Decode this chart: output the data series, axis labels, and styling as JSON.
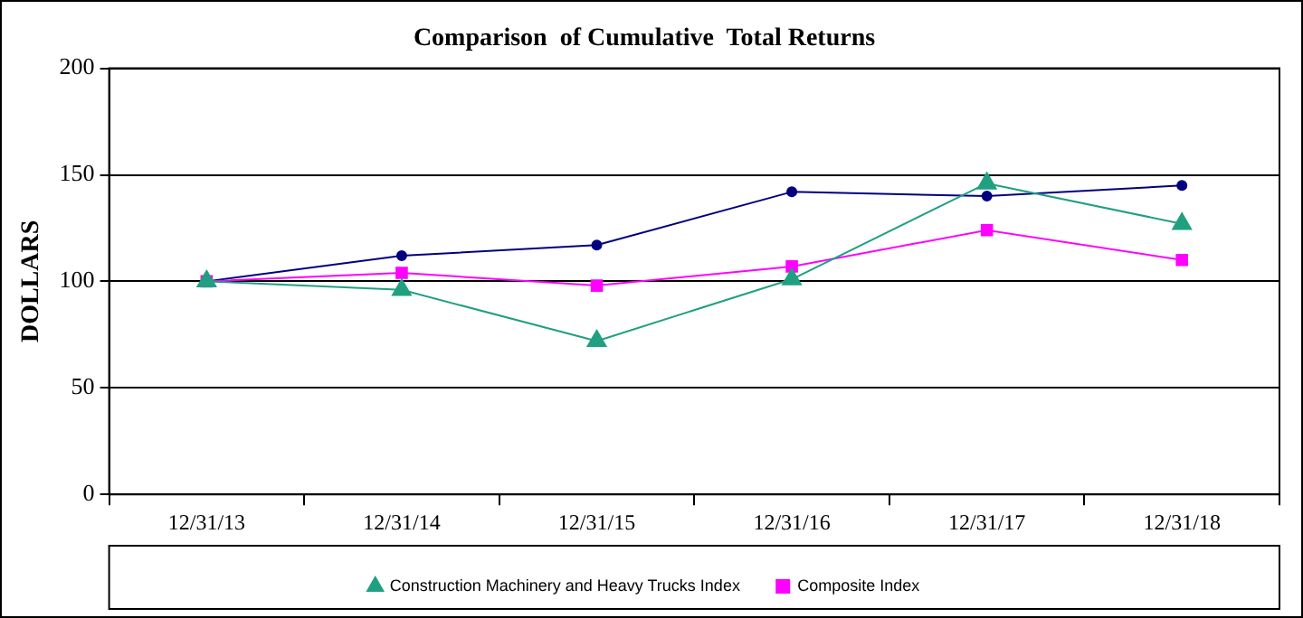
{
  "chart_data": {
    "type": "line",
    "title": "Comparison  of Cumulative  Total Returns",
    "ylabel": "DOLLARS",
    "categories": [
      "12/31/13",
      "12/31/14",
      "12/31/15",
      "12/31/16",
      "12/31/17",
      "12/31/18"
    ],
    "series": [
      {
        "color": "#000080",
        "marker": "circle",
        "values": [
          100,
          112,
          117,
          142,
          140,
          145
        ]
      },
      {
        "name": "Composite Index",
        "color": "#ff00ff",
        "marker": "square",
        "values": [
          100,
          104,
          98,
          107,
          124,
          110
        ]
      },
      {
        "name": "Construction Machinery and Heavy Trucks Index",
        "color": "#20a080",
        "marker": "triangle",
        "values": [
          100,
          96,
          72,
          101,
          146,
          127
        ]
      }
    ],
    "ylim": [
      0,
      200
    ],
    "yticks": [
      0,
      50,
      100,
      150,
      200
    ],
    "grid": "y",
    "legend": "bottom"
  }
}
